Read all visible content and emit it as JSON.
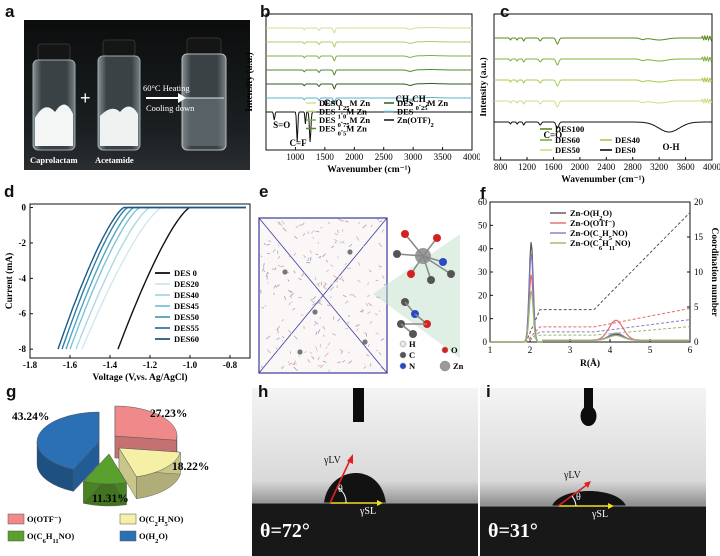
{
  "figure": {
    "panels": {
      "a": {
        "label": "a",
        "bottle_labels": [
          "Caprolactam",
          "Acetamide"
        ],
        "plus": "+",
        "arrow_top": "60°C Heating",
        "arrow_bottom": "Cooling down"
      },
      "e": {
        "label": "e",
        "atom_legend": [
          {
            "symbol": "H",
            "color": "#e8e8e8"
          },
          {
            "symbol": "C",
            "color": "#555555"
          },
          {
            "symbol": "N",
            "color": "#2a49c8"
          },
          {
            "symbol": "O",
            "color": "#d62020"
          },
          {
            "symbol": "Zn",
            "color": "#9a9a9a"
          }
        ]
      },
      "h": {
        "label": "h",
        "angle_text": "θ=72°",
        "gamma_lv": "γLV",
        "gamma_sl": "γSL",
        "theta": "θ"
      },
      "i": {
        "label": "i",
        "angle_text": "θ=31°",
        "gamma_lv": "γLV",
        "gamma_sl": "γSL",
        "theta": "θ"
      }
    }
  },
  "chart_data": [
    {
      "id": "b",
      "label": "b",
      "type": "line",
      "xlabel": "Wavenumber (cm⁻¹)",
      "ylabel": "Intensity (a.u.)",
      "xlim": [
        500,
        4000
      ],
      "xticks": [
        "1000",
        "1500",
        "2000",
        "2500",
        "3000",
        "3500",
        "4000"
      ],
      "annotations": [
        "S=O",
        "C=F",
        "C=O",
        "CH3CH2"
      ],
      "legend": [
        "DES 1.25M Zn",
        "DES 1.0M Zn",
        "DES 0.75M Zn",
        "DES 0.5M Zn",
        "DES 0.25M Zn",
        "DES",
        "Zn(OTF)2"
      ],
      "series": [
        {
          "name": "DES 1.25M Zn",
          "color": "#cde39a",
          "offset": 6
        },
        {
          "name": "DES 1.0M Zn",
          "color": "#a8cf6a",
          "offset": 5
        },
        {
          "name": "DES 0.75M Zn",
          "color": "#7fb24a",
          "offset": 4
        },
        {
          "name": "DES 0.5M Zn",
          "color": "#4f8a2e",
          "offset": 3
        },
        {
          "name": "DES 0.25M Zn",
          "color": "#2e5e1e",
          "offset": 2
        },
        {
          "name": "DES",
          "color": "#5ab6c8",
          "offset": 1
        },
        {
          "name": "Zn(OTF)2",
          "color": "#111111",
          "offset": 0
        }
      ]
    },
    {
      "id": "c",
      "label": "c",
      "type": "line",
      "xlabel": "Wavenumber (cm⁻¹)",
      "ylabel": "Intensity (a.u.)",
      "xlim": [
        700,
        4000
      ],
      "xticks": [
        "800",
        "1200",
        "1600",
        "2000",
        "2400",
        "2800",
        "3200",
        "3600",
        "4000"
      ],
      "annotations": [
        "C=O",
        "O-H"
      ],
      "legend": [
        "DES100",
        "DES60",
        "DES40",
        "DES50",
        "DES0"
      ],
      "series": [
        {
          "name": "DES100",
          "color": "#5a8a1a",
          "offset": 4
        },
        {
          "name": "DES60",
          "color": "#7fb23a",
          "offset": 3
        },
        {
          "name": "DES40",
          "color": "#a6cc4e",
          "offset": 2
        },
        {
          "name": "DES50",
          "color": "#c9df8a",
          "offset": 1
        },
        {
          "name": "DES0",
          "color": "#111111",
          "offset": 0
        }
      ]
    },
    {
      "id": "d",
      "label": "d",
      "type": "line",
      "xlabel": "Voltage (V,vs. Ag/AgCl)",
      "ylabel": "Current (mA)",
      "xlim": [
        -1.8,
        -0.7
      ],
      "ylim": [
        -8.5,
        0.2
      ],
      "xticks": [
        "-1.8",
        "-1.6",
        "-1.4",
        "-1.2",
        "-1.0",
        "-0.8"
      ],
      "yticks": [
        "0",
        "-2",
        "-4",
        "-6",
        "-8"
      ],
      "series": [
        {
          "name": "DES 0",
          "color": "#111111",
          "onset": -1.0,
          "end": -1.36
        },
        {
          "name": "DES20",
          "color": "#cfe8f0",
          "onset": -1.14,
          "end": -1.54
        },
        {
          "name": "DES40",
          "color": "#a9d9e6",
          "onset": -1.2,
          "end": -1.57
        },
        {
          "name": "DES45",
          "color": "#7fc3d6",
          "onset": -1.25,
          "end": -1.6
        },
        {
          "name": "DES50",
          "color": "#4fa5c0",
          "onset": -1.28,
          "end": -1.62
        },
        {
          "name": "DES55",
          "color": "#2f7fa3",
          "onset": -1.31,
          "end": -1.64
        },
        {
          "name": "DES60",
          "color": "#1d5b86",
          "onset": -1.33,
          "end": -1.66
        }
      ]
    },
    {
      "id": "f",
      "label": "f",
      "type": "line",
      "xlabel": "R(Å)",
      "ylabel": "g(r)",
      "y2label": "Coordination number",
      "xlim": [
        1,
        6
      ],
      "ylim": [
        0,
        60
      ],
      "y2lim": [
        0,
        20
      ],
      "xticks": [
        "1",
        "2",
        "3",
        "4",
        "5",
        "6"
      ],
      "yticks": [
        "0",
        "10",
        "20",
        "30",
        "40",
        "50",
        "60"
      ],
      "y2ticks": [
        "0",
        "5",
        "10",
        "15",
        "20"
      ],
      "series": [
        {
          "name": "Zn-O(H2O)",
          "color": "#555555",
          "peak": 43,
          "second": 2.5,
          "cn_end": 18.5
        },
        {
          "name": "Zn-O(OTf⁻)",
          "color": "#e46a6a",
          "peak": 29,
          "second": 8.5,
          "cn_end": 4.8
        },
        {
          "name": "Zn-O(C2H5NO)",
          "color": "#8a78c8",
          "peak": 38,
          "second": 3.0,
          "cn_end": 3.2
        },
        {
          "name": "Zn-O(C6H11NO)",
          "color": "#9bb868",
          "peak": 22,
          "second": 2.0,
          "cn_end": 2.2
        }
      ]
    },
    {
      "id": "g",
      "label": "g",
      "type": "pie",
      "slices": [
        {
          "name": "O(OTF⁻)",
          "value": 27.23,
          "label": "27.23%",
          "color": "#f08a8a"
        },
        {
          "name": "O(C2H5NO)",
          "value": 18.22,
          "label": "18.22%",
          "color": "#f6f0a6"
        },
        {
          "name": "O(C6H11NO)",
          "value": 11.31,
          "label": "11.31%",
          "color": "#5aa02c"
        },
        {
          "name": "O(H2O)",
          "value": 43.24,
          "label": "43.24%",
          "color": "#2b6fb5"
        }
      ]
    }
  ]
}
